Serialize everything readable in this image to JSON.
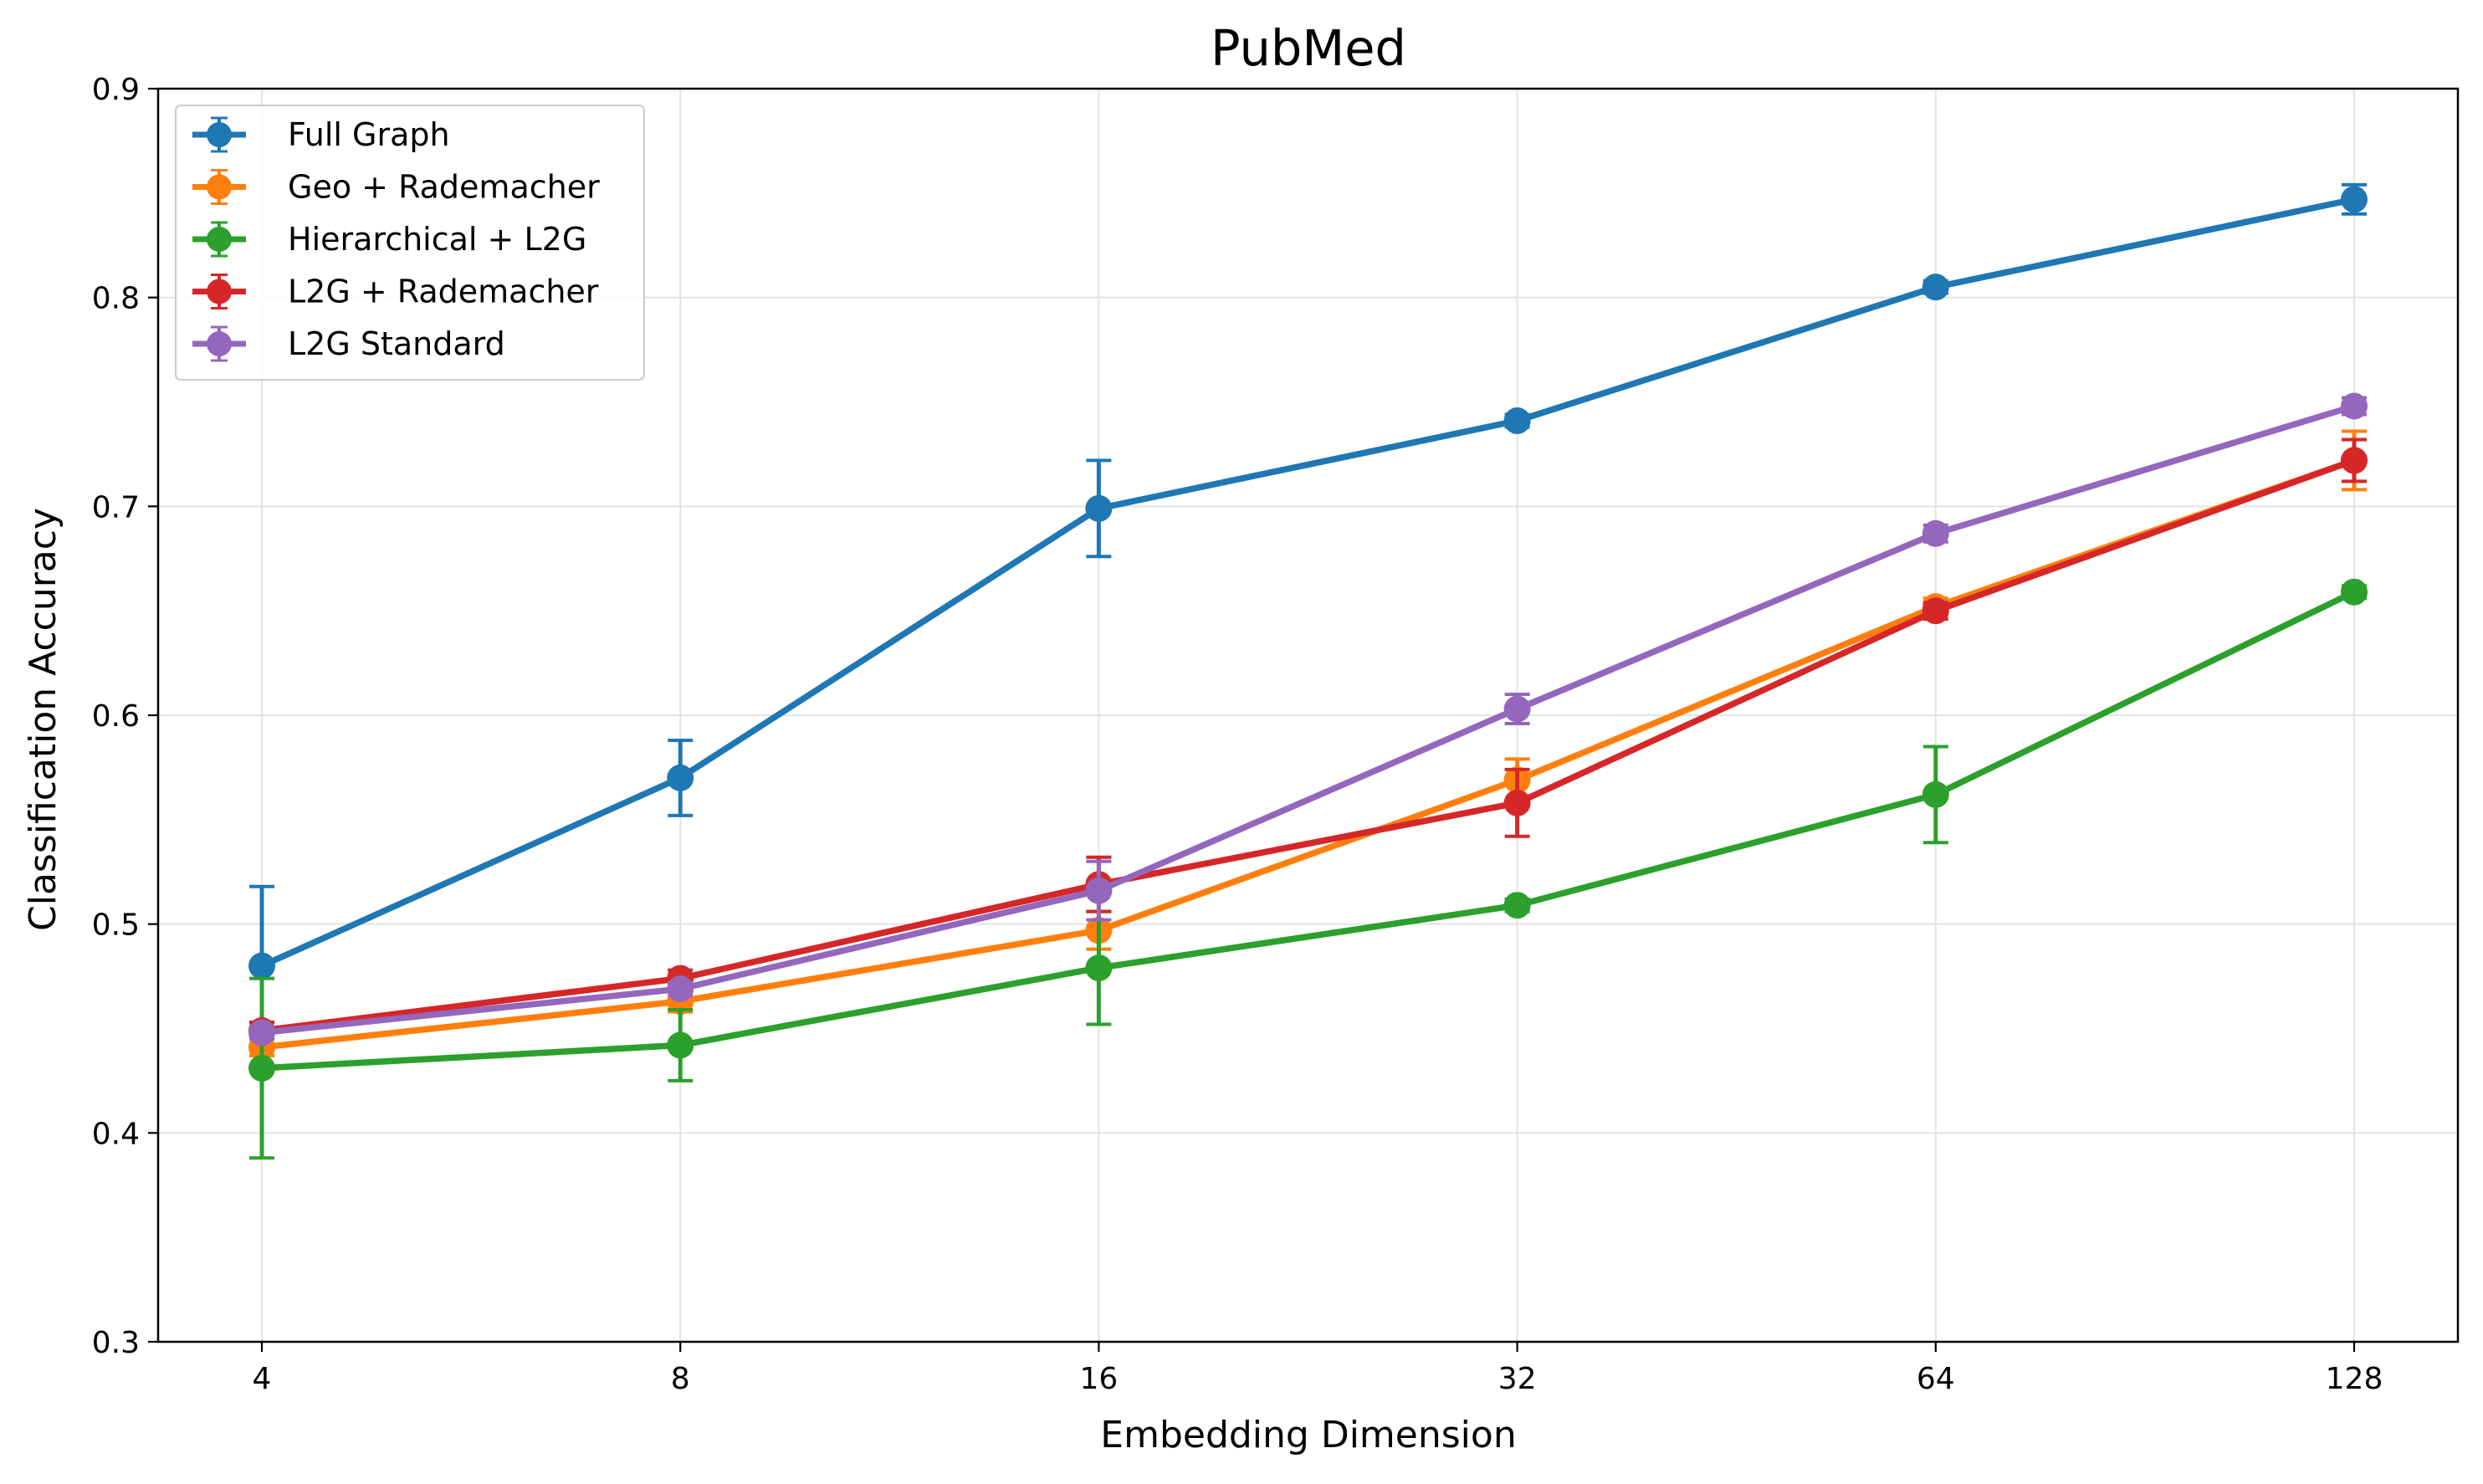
{
  "chart_data": {
    "type": "line",
    "title": "PubMed",
    "xlabel": "Embedding Dimension",
    "ylabel": "Classification Accuracy",
    "x": [
      4,
      8,
      16,
      32,
      64,
      128
    ],
    "x_tick_labels": [
      "4",
      "8",
      "16",
      "32",
      "64",
      "128"
    ],
    "x_scale": "log2",
    "ylim": [
      0.3,
      0.9
    ],
    "y_ticks": [
      0.3,
      0.4,
      0.5,
      0.6,
      0.7,
      0.8,
      0.9
    ],
    "y_tick_labels": [
      "0.3",
      "0.4",
      "0.5",
      "0.6",
      "0.7",
      "0.8",
      "0.9"
    ],
    "grid": true,
    "legend_position": "top-left",
    "error_bars": true,
    "series": [
      {
        "name": "Full Graph",
        "color": "#1f77b4",
        "values": [
          0.48,
          0.57,
          0.699,
          0.741,
          0.805,
          0.847
        ],
        "errors": [
          0.038,
          0.018,
          0.023,
          0.003,
          0.003,
          0.007
        ]
      },
      {
        "name": "Geo + Rademacher",
        "color": "#ff7f0e",
        "values": [
          0.441,
          0.463,
          0.497,
          0.569,
          0.652,
          0.722
        ],
        "errors": [
          0.004,
          0.005,
          0.009,
          0.01,
          0.004,
          0.014
        ]
      },
      {
        "name": "Hierarchical + L2G",
        "color": "#2ca02c",
        "values": [
          0.431,
          0.442,
          0.479,
          0.509,
          0.562,
          0.659
        ],
        "errors": [
          0.043,
          0.017,
          0.027,
          0.003,
          0.023,
          0.003
        ]
      },
      {
        "name": "L2G + Rademacher",
        "color": "#d62728",
        "values": [
          0.449,
          0.474,
          0.519,
          0.558,
          0.65,
          0.722
        ],
        "errors": [
          0.004,
          0.004,
          0.013,
          0.016,
          0.004,
          0.01
        ]
      },
      {
        "name": "L2G Standard",
        "color": "#9467bd",
        "values": [
          0.448,
          0.469,
          0.516,
          0.603,
          0.687,
          0.748
        ],
        "errors": [
          0.003,
          0.003,
          0.014,
          0.007,
          0.004,
          0.004
        ]
      }
    ]
  }
}
